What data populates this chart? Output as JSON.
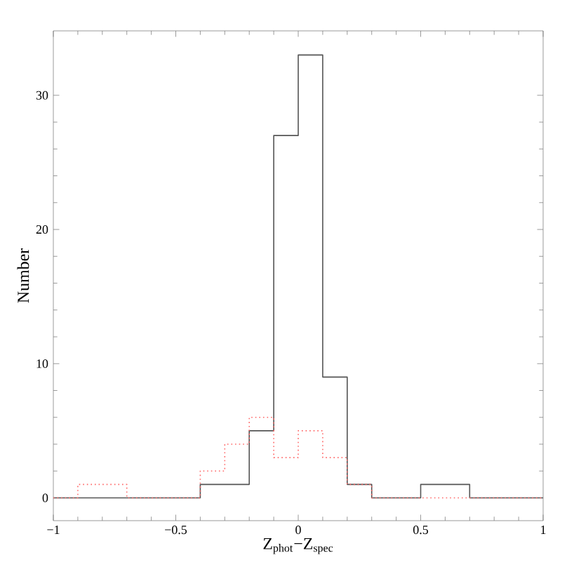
{
  "chart_data": {
    "type": "histogram",
    "xlabel": "Z$_{phot}$−Z$_{spec}$",
    "ylabel": "Number",
    "bins": [
      -1,
      -0.9,
      -0.8,
      -0.7,
      -0.6,
      -0.5,
      -0.4,
      -0.3,
      -0.2,
      -0.1,
      0,
      0.1,
      0.2,
      0.3,
      0.4,
      0.5,
      0.6,
      0.7,
      0.8,
      0.9,
      1
    ],
    "series": [
      {
        "color": "#555555",
        "line_style": "solid",
        "values": [
          0,
          0,
          0,
          0,
          0,
          0,
          1,
          1,
          5,
          27,
          33,
          9,
          1,
          0,
          0,
          1,
          1,
          0,
          0,
          0
        ]
      },
      {
        "color": "#ff6666",
        "line_style": "dotted",
        "values": [
          0,
          1,
          1,
          0,
          0,
          0,
          2,
          4,
          6,
          3,
          5,
          3,
          1,
          0,
          0,
          0,
          0,
          0,
          0,
          0
        ]
      }
    ],
    "xlim": [
      -1,
      1
    ],
    "ylim": [
      -1.7,
      34.8
    ],
    "xticks": [
      {
        "value": -1,
        "label": "−1"
      },
      {
        "value": -0.5,
        "label": "−0.5"
      },
      0,
      0.5,
      1
    ],
    "yticks": [
      0,
      10,
      20,
      30
    ],
    "grid": false
  }
}
